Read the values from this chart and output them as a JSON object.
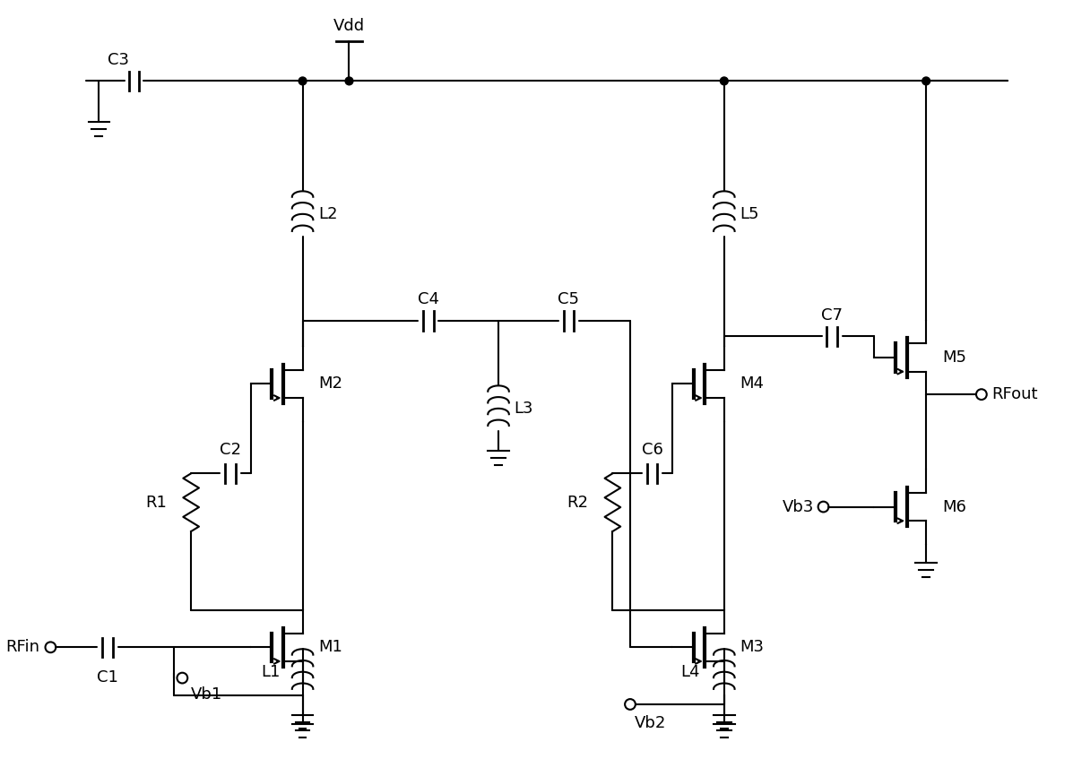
{
  "fig_width": 11.97,
  "fig_height": 8.47,
  "line_color": "#000000",
  "line_width": 1.5,
  "background_color": "#ffffff",
  "font_size": 13,
  "components": {
    "labels": [
      "C1",
      "C2",
      "C3",
      "C4",
      "C5",
      "C6",
      "C7",
      "L1",
      "L2",
      "L3",
      "L4",
      "L5",
      "R1",
      "R2",
      "M1",
      "M2",
      "M3",
      "M4",
      "M5",
      "M6",
      "Vdd",
      "RFin",
      "RFout",
      "Vb1",
      "Vb2",
      "Vb3"
    ]
  }
}
